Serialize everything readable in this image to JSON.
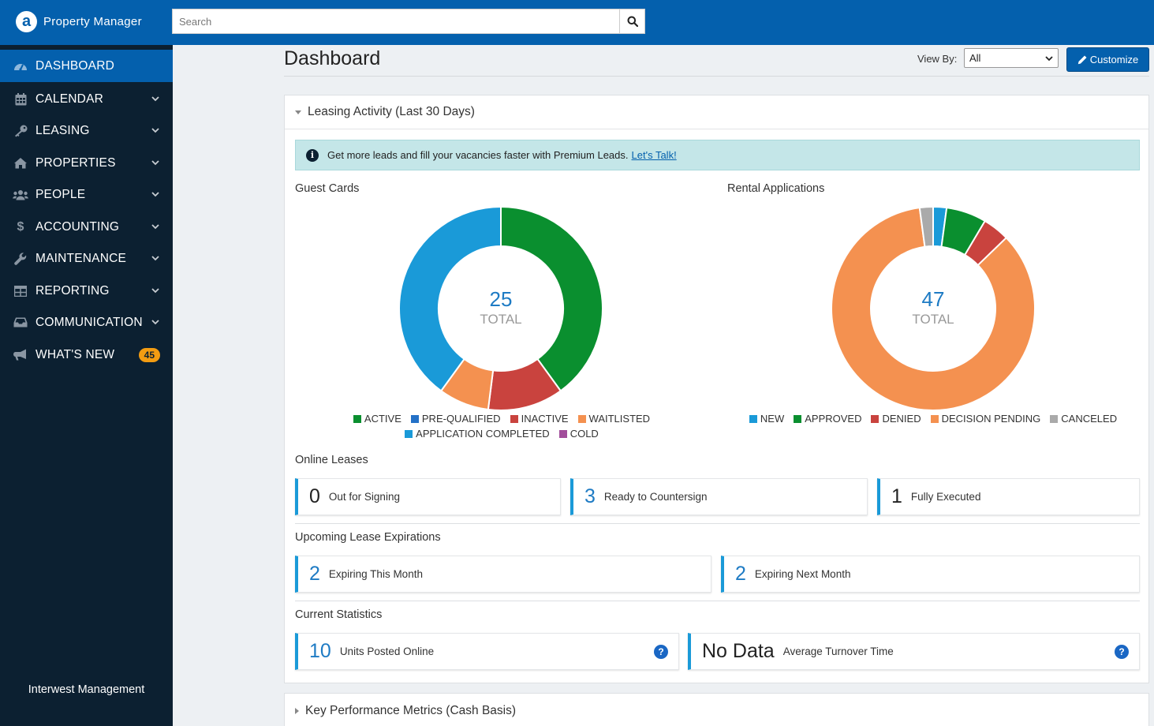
{
  "app": {
    "brand_letter": "a",
    "name": "Property Manager"
  },
  "search": {
    "placeholder": "Search"
  },
  "sidebar": {
    "items": [
      {
        "label": "DASHBOARD",
        "icon": "gauge-icon",
        "active": true
      },
      {
        "label": "CALENDAR",
        "icon": "calendar-icon"
      },
      {
        "label": "LEASING",
        "icon": "key-icon"
      },
      {
        "label": "PROPERTIES",
        "icon": "home-icon"
      },
      {
        "label": "PEOPLE",
        "icon": "users-icon"
      },
      {
        "label": "ACCOUNTING",
        "icon": "dollar-icon"
      },
      {
        "label": "MAINTENANCE",
        "icon": "wrench-icon"
      },
      {
        "label": "REPORTING",
        "icon": "table-icon"
      },
      {
        "label": "COMMUNICATION",
        "icon": "inbox-icon"
      },
      {
        "label": "WHAT'S NEW",
        "icon": "megaphone-icon",
        "badge": "45"
      }
    ],
    "company": "Interwest Management"
  },
  "page": {
    "title": "Dashboard",
    "view_by_label": "View By:",
    "view_by_value": "All",
    "customize_label": "Customize"
  },
  "leasing": {
    "title": "Leasing Activity (Last 30 Days)",
    "promo_text": "Get more leads and fill your vacancies faster with Premium Leads.",
    "promo_link": "Let's Talk!",
    "guest_cards": {
      "label": "Guest Cards",
      "total": "25",
      "total_label": "TOTAL"
    },
    "rental_apps": {
      "label": "Rental Applications",
      "total": "47",
      "total_label": "TOTAL"
    },
    "online_leases": {
      "label": "Online Leases",
      "items": [
        {
          "value": "0",
          "label": "Out for Signing"
        },
        {
          "value": "3",
          "label": "Ready to Countersign"
        },
        {
          "value": "1",
          "label": "Fully Executed"
        }
      ]
    },
    "expirations": {
      "label": "Upcoming Lease Expirations",
      "items": [
        {
          "value": "2",
          "label": "Expiring This Month"
        },
        {
          "value": "2",
          "label": "Expiring Next Month"
        }
      ]
    },
    "current_stats": {
      "label": "Current Statistics",
      "items": [
        {
          "value": "10",
          "label": "Units Posted Online"
        },
        {
          "value": "No Data",
          "label": "Average Turnover Time"
        }
      ]
    }
  },
  "kpi": {
    "title": "Key Performance Metrics (Cash Basis)"
  },
  "chart_data": [
    {
      "type": "pie",
      "title": "Guest Cards",
      "categories": [
        "ACTIVE",
        "PRE-QUALIFIED",
        "INACTIVE",
        "WAITLISTED",
        "APPLICATION COMPLETED",
        "COLD"
      ],
      "values": [
        10,
        0,
        3,
        2,
        10,
        0
      ],
      "colors": [
        "#0a8f2f",
        "#2471c7",
        "#c9433e",
        "#f49150",
        "#1a9ad8",
        "#a24e9b"
      ],
      "legend": "bottom"
    },
    {
      "type": "pie",
      "title": "Rental Applications",
      "categories": [
        "NEW",
        "APPROVED",
        "DENIED",
        "DECISION PENDING",
        "CANCELED"
      ],
      "values": [
        1,
        3,
        2,
        40,
        1
      ],
      "colors": [
        "#1a9ad8",
        "#0a8f2f",
        "#c9433e",
        "#f49150",
        "#aaaaaa"
      ],
      "legend": "bottom"
    }
  ]
}
